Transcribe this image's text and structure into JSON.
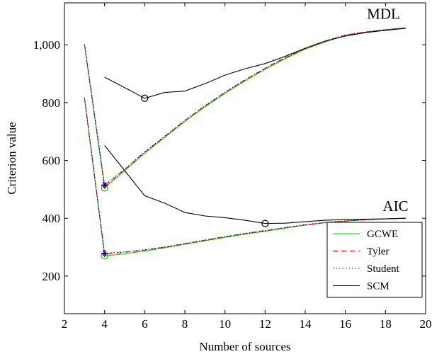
{
  "chart_data": {
    "type": "line",
    "title": "",
    "xlabel": "Number of sources",
    "ylabel": "Criterion value",
    "xlim": [
      2,
      20
    ],
    "ylim": [
      70,
      1145
    ],
    "xticks": [
      2,
      4,
      6,
      8,
      10,
      12,
      14,
      16,
      18,
      20
    ],
    "xtick_labels": [
      "2",
      "4",
      "6",
      "8",
      "10",
      "12",
      "14",
      "16",
      "18",
      "20"
    ],
    "yticks": [
      200,
      400,
      600,
      800,
      1000
    ],
    "ytick_labels": [
      "200",
      "400",
      "600",
      "800",
      "1,000"
    ],
    "grid": false,
    "legend_position": "bottom-right",
    "annotations": [
      {
        "text": "MDL",
        "x": 17.9,
        "y": 1090
      },
      {
        "text": "AIC",
        "x": 18.5,
        "y": 425
      }
    ],
    "series": [
      {
        "name": "GCWE",
        "color": "#00cc00",
        "dash": "",
        "curve": "MDL",
        "x": [
          3,
          4,
          5,
          6,
          7,
          8,
          9,
          10,
          11,
          12,
          13,
          14,
          15,
          16,
          17,
          18,
          19
        ],
        "y": [
          1000,
          505,
          565,
          625,
          680,
          735,
          785,
          832,
          875,
          915,
          952,
          985,
          1010,
          1032,
          1043,
          1052,
          1058
        ]
      },
      {
        "name": "Tyler",
        "color": "#ff0000",
        "dash": "7,5",
        "curve": "MDL",
        "x": [
          3,
          4,
          5,
          6,
          7,
          8,
          9,
          10,
          11,
          12,
          13,
          14,
          15,
          16,
          17,
          18,
          19
        ],
        "y": [
          1002,
          512,
          568,
          628,
          683,
          738,
          788,
          835,
          878,
          918,
          955,
          987,
          1012,
          1033,
          1044,
          1052,
          1058
        ]
      },
      {
        "name": "Student",
        "color": "#0000aa",
        "dash": "1.5,3",
        "curve": "MDL",
        "x": [
          3,
          4,
          5,
          6,
          7,
          8,
          9,
          10,
          11,
          12,
          13,
          14,
          15,
          16,
          17,
          18,
          19
        ],
        "y": [
          1001,
          515,
          570,
          630,
          684,
          739,
          789,
          836,
          879,
          919,
          956,
          988,
          1013,
          1034,
          1044,
          1052,
          1058
        ]
      },
      {
        "name": "SCM",
        "color": "#000000",
        "dash": "",
        "curve": "MDL",
        "x": [
          4,
          5,
          6,
          7,
          8,
          9,
          10,
          11,
          12,
          13,
          14,
          15,
          16,
          17,
          18,
          19
        ],
        "y": [
          888,
          852,
          815,
          835,
          840,
          865,
          895,
          917,
          935,
          960,
          988,
          1013,
          1030,
          1042,
          1050,
          1057
        ]
      },
      {
        "name": "GCWE",
        "color": "#00cc00",
        "dash": "",
        "curve": "AIC",
        "x": [
          3,
          4,
          5,
          6,
          7,
          8,
          9,
          10,
          11,
          12,
          13,
          14,
          15,
          16,
          17,
          18,
          19
        ],
        "y": [
          815,
          270,
          277,
          287,
          298,
          310,
          322,
          334,
          345,
          355,
          366,
          376,
          385,
          390,
          395,
          398,
          400
        ]
      },
      {
        "name": "Tyler",
        "color": "#ff0000",
        "dash": "7,5",
        "curve": "AIC",
        "x": [
          3,
          4,
          5,
          6,
          7,
          8,
          9,
          10,
          11,
          12,
          13,
          14,
          15,
          16,
          17,
          18,
          19
        ],
        "y": [
          817,
          276,
          282,
          290,
          300,
          312,
          324,
          336,
          347,
          357,
          367,
          377,
          385,
          390,
          395,
          398,
          400
        ]
      },
      {
        "name": "Student",
        "color": "#0000aa",
        "dash": "1.5,3",
        "curve": "AIC",
        "x": [
          3,
          4,
          5,
          6,
          7,
          8,
          9,
          10,
          11,
          12,
          13,
          14,
          15,
          16,
          17,
          18,
          19
        ],
        "y": [
          816,
          279,
          284,
          291,
          301,
          313,
          325,
          337,
          348,
          358,
          368,
          378,
          386,
          391,
          395,
          398,
          400
        ]
      },
      {
        "name": "SCM",
        "color": "#000000",
        "dash": "",
        "curve": "AIC",
        "x": [
          4,
          5,
          6,
          7,
          8,
          9,
          10,
          11,
          12,
          13,
          14,
          15,
          16,
          17,
          18,
          19
        ],
        "y": [
          652,
          565,
          478,
          452,
          420,
          408,
          402,
          393,
          382,
          383,
          388,
          393,
          396,
          397,
          398,
          400
        ]
      }
    ],
    "markers": [
      {
        "series": "GCWE",
        "shape": "circle",
        "color": "#00cc00",
        "x": 4,
        "y": 505
      },
      {
        "series": "GCWE",
        "shape": "circle",
        "color": "#00cc00",
        "x": 4,
        "y": 270
      },
      {
        "series": "Tyler",
        "shape": "plus",
        "color": "#ff0000",
        "x": 4,
        "y": 512
      },
      {
        "series": "Tyler",
        "shape": "plus",
        "color": "#ff0000",
        "x": 4,
        "y": 276
      },
      {
        "series": "Student",
        "shape": "star",
        "color": "#0000aa",
        "x": 4,
        "y": 515
      },
      {
        "series": "Student",
        "shape": "star",
        "color": "#0000aa",
        "x": 4,
        "y": 279
      },
      {
        "series": "SCM",
        "shape": "circle",
        "color": "#000000",
        "x": 6,
        "y": 815
      },
      {
        "series": "SCM",
        "shape": "circle",
        "color": "#000000",
        "x": 12,
        "y": 382
      }
    ],
    "legend": [
      {
        "label": "GCWE",
        "color": "#00cc00",
        "dash": ""
      },
      {
        "label": "Tyler",
        "color": "#ff0000",
        "dash": "7,5"
      },
      {
        "label": "Student",
        "color": "#0000aa",
        "dash": "1.5,3"
      },
      {
        "label": "SCM",
        "color": "#000000",
        "dash": ""
      }
    ]
  }
}
